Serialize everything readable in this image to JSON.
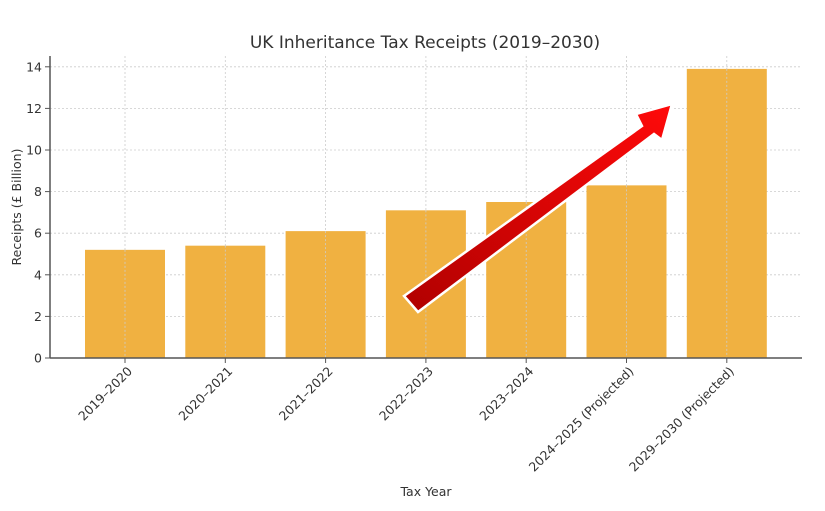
{
  "chart_data": {
    "type": "bar",
    "title": "UK Inheritance Tax Receipts (2019–2030)",
    "xlabel": "Tax Year",
    "ylabel": "Receipts (£ Billion)",
    "categories": [
      "2019–2020",
      "2020–2021",
      "2021–2022",
      "2022–2023",
      "2023–2024",
      "2024–2025 (Projected)",
      "2029–2030 (Projected)"
    ],
    "values": [
      5.2,
      5.4,
      6.1,
      7.1,
      7.5,
      8.3,
      13.9
    ],
    "ylim": [
      0,
      14.5
    ],
    "yticks": [
      0,
      2,
      4,
      6,
      8,
      10,
      12,
      14
    ],
    "grid": true,
    "bar_color": "#f0b141",
    "annotations": [
      {
        "type": "arrow",
        "description": "red upward trend arrow",
        "from": {
          "category_index": 3,
          "y": 2.8
        },
        "to": {
          "category_index": 5.45,
          "y": 12.2
        },
        "color": "#e60000"
      }
    ]
  }
}
